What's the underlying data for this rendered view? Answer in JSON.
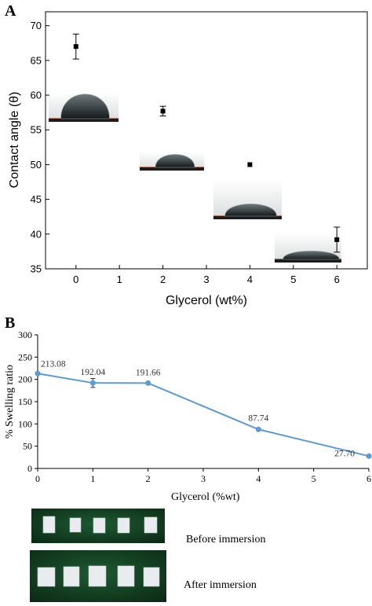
{
  "panels": {
    "a_label": "A",
    "b_label": "B"
  },
  "chart_data": [
    {
      "type": "scatter",
      "panel": "A",
      "xlabel": "Glycerol (wt%)",
      "ylabel": "Contact angle (θ)",
      "xlim": [
        -0.7,
        6.7
      ],
      "ylim": [
        35,
        72
      ],
      "xticks": [
        0,
        1,
        2,
        3,
        4,
        5,
        6
      ],
      "yticks": [
        35,
        40,
        45,
        50,
        55,
        60,
        65,
        70
      ],
      "x": [
        0,
        2,
        4,
        6
      ],
      "y": [
        67.0,
        57.7,
        50.0,
        39.2
      ],
      "yerr": [
        1.8,
        0.7,
        0.15,
        1.8
      ],
      "marker": "square",
      "color": "#000000",
      "droplet_insets": 4
    },
    {
      "type": "line",
      "panel": "B",
      "xlabel": "Glycerol (%wt)",
      "ylabel": "% Swelling ratio",
      "xlim": [
        0,
        6
      ],
      "ylim": [
        0,
        300
      ],
      "xticks": [
        0,
        1,
        2,
        3,
        4,
        5,
        6
      ],
      "yticks": [
        0,
        50,
        100,
        150,
        200,
        250,
        300
      ],
      "x": [
        0,
        1,
        2,
        4,
        6
      ],
      "y": [
        213.08,
        192.04,
        191.66,
        87.74,
        27.7
      ],
      "yerr": [
        0,
        10,
        0,
        0,
        0
      ],
      "data_labels": [
        "213.08",
        "192.04",
        "191.66",
        "87.74",
        "27.70"
      ],
      "color": "#5b9bd5",
      "grid": false
    }
  ],
  "photos": {
    "before_caption": "Before immersion",
    "after_caption": "After immersion",
    "background_color": "#12381e",
    "sample_color": "#e8ecee"
  }
}
